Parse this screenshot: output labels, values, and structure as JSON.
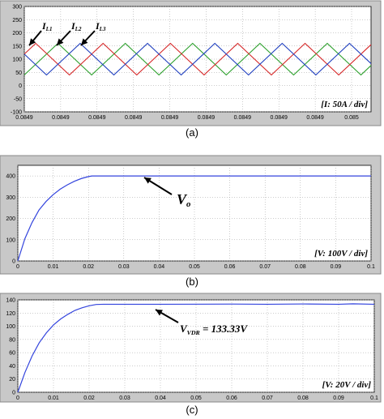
{
  "charts": [
    {
      "id": "a",
      "caption": "(a)",
      "chart_data": {
        "type": "line",
        "xlabel": "",
        "ylabel": "",
        "ylim": [
          -100,
          300
        ],
        "yticks": [
          -100,
          -50,
          0,
          50,
          100,
          150,
          200,
          250,
          300
        ],
        "yticklabels": [
          "-100",
          "-50",
          "0",
          "50",
          "100",
          "150",
          "200",
          "250",
          "300"
        ],
        "xticklabels": [
          "0.0849",
          "0.0849",
          "0.0849",
          "0.0849",
          "0.0849",
          "0.0849",
          "0.0849",
          "0.0849",
          "0.0849",
          "0.085"
        ],
        "grid": true,
        "scale_label": "[I: 50A / div]",
        "series": [
          {
            "label": "I",
            "subscript": "L1",
            "color": "#2ca02c",
            "min": 40,
            "max": 160,
            "phase": 0.0
          },
          {
            "label": "I",
            "subscript": "L2",
            "color": "#d62728",
            "min": 40,
            "max": 160,
            "phase": 0.33
          },
          {
            "label": "I",
            "subscript": "L3",
            "color": "#1f3fbf",
            "min": 40,
            "max": 160,
            "phase": 0.67
          }
        ],
        "periods": 5.15
      }
    },
    {
      "id": "b",
      "caption": "(b)",
      "chart_data": {
        "type": "line",
        "xlabel": "",
        "ylabel": "",
        "xlim": [
          0,
          0.1
        ],
        "ylim": [
          0,
          450
        ],
        "yticks": [
          0,
          100,
          200,
          300,
          400
        ],
        "yticklabels": [
          "0",
          "100",
          "200",
          "300",
          "400"
        ],
        "xticks": [
          0,
          0.01,
          0.02,
          0.03,
          0.04,
          0.05,
          0.06,
          0.07,
          0.08,
          0.09,
          0.1
        ],
        "xticklabels": [
          "0",
          "0.01",
          "0.02",
          "0.03",
          "0.04",
          "0.05",
          "0.06",
          "0.07",
          "0.08",
          "0.09",
          "0.1"
        ],
        "grid": true,
        "scale_label": "[V: 100V / div]",
        "annotation": {
          "text": "V",
          "subscript": "o"
        },
        "series": [
          {
            "name": "",
            "color": "#3344dd",
            "x": [
              0,
              0.002,
              0.004,
              0.006,
              0.008,
              0.01,
              0.012,
              0.014,
              0.016,
              0.018,
              0.02,
              0.021,
              0.03,
              0.05,
              0.07,
              0.09,
              0.1
            ],
            "y": [
              0,
              105,
              180,
              240,
              280,
              312,
              338,
              358,
              375,
              388,
              397,
              400,
              400,
              400,
              400,
              400,
              400
            ]
          }
        ]
      }
    },
    {
      "id": "c",
      "caption": "(c)",
      "chart_data": {
        "type": "line",
        "xlabel": "",
        "ylabel": "",
        "xlim": [
          0,
          0.1
        ],
        "ylim": [
          0,
          140
        ],
        "yticks": [
          0,
          20,
          40,
          60,
          80,
          100,
          120,
          140
        ],
        "yticklabels": [
          "0",
          "20",
          "40",
          "60",
          "80",
          "100",
          "120",
          "140"
        ],
        "xticks": [
          0,
          0.01,
          0.02,
          0.03,
          0.04,
          0.05,
          0.06,
          0.07,
          0.08,
          0.09,
          0.1
        ],
        "xticklabels": [
          "0",
          "0.01",
          "0.02",
          "0.03",
          "0.04",
          "0.05",
          "0.06",
          "0.07",
          "0.08",
          "0.09",
          "0.1"
        ],
        "grid": true,
        "scale_label": "[V: 20V / div]",
        "annotation": {
          "text": "V",
          "subscript": "VDR",
          "suffix": " = 133.33V"
        },
        "series": [
          {
            "name": "",
            "color": "#3344dd",
            "x": [
              0,
              0.002,
              0.004,
              0.006,
              0.008,
              0.01,
              0.012,
              0.014,
              0.016,
              0.018,
              0.02,
              0.022,
              0.024,
              0.04,
              0.06,
              0.07,
              0.08,
              0.09,
              0.094,
              0.1
            ],
            "y": [
              0,
              30,
              55,
              75,
              90,
              102,
              111,
              118,
              124,
              128,
              131,
              133,
              133.33,
              133.33,
              133.6,
              133.33,
              133.8,
              133.33,
              134.0,
              133.33
            ]
          }
        ]
      }
    }
  ]
}
